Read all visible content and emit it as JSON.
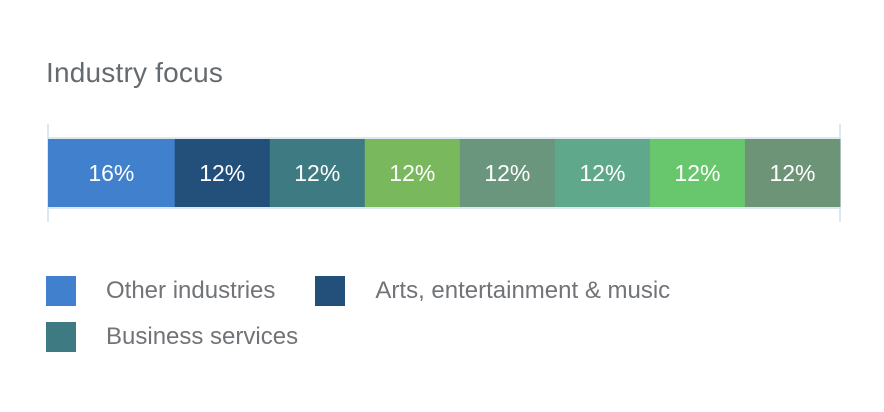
{
  "title": "Industry focus",
  "chart_data": {
    "type": "bar",
    "orientation": "horizontal-stacked",
    "title": "Industry focus",
    "unit": "%",
    "segments": [
      {
        "name": "Other industries",
        "value": 16,
        "label": "16%",
        "color": "#4080cc"
      },
      {
        "name": "Arts, entertainment & music",
        "value": 12,
        "label": "12%",
        "color": "#22507a"
      },
      {
        "name": "Business services",
        "value": 12,
        "label": "12%",
        "color": "#3e7a82"
      },
      {
        "name": "",
        "value": 12,
        "label": "12%",
        "color": "#7ab85e"
      },
      {
        "name": "",
        "value": 12,
        "label": "12%",
        "color": "#6a967e"
      },
      {
        "name": "",
        "value": 12,
        "label": "12%",
        "color": "#60a88c"
      },
      {
        "name": "",
        "value": 12,
        "label": "12%",
        "color": "#68c66c"
      },
      {
        "name": "",
        "value": 12,
        "label": "12%",
        "color": "#6e9478"
      }
    ],
    "legend": {
      "placement": "bottom",
      "entries": [
        {
          "name": "Other industries",
          "color": "#4080cc"
        },
        {
          "name": "Arts, entertainment & music",
          "color": "#22507a"
        },
        {
          "name": "Business services",
          "color": "#3e7a82"
        }
      ]
    },
    "frame_color": "#cfe1ec"
  }
}
